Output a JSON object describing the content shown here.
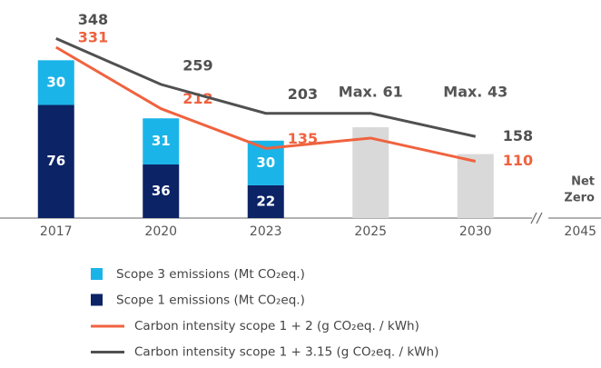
{
  "chart_data": {
    "type": "bar",
    "categories": [
      "2017",
      "2020",
      "2023",
      "2025",
      "2030",
      "2045"
    ],
    "series": [
      {
        "name": "Scope 3 emissions (Mt CO₂eq.)",
        "type": "bar",
        "color": "#1bb4e8",
        "values": [
          30,
          31,
          30,
          null,
          null,
          null
        ]
      },
      {
        "name": "Scope 1 emissions (Mt CO₂eq.)",
        "type": "bar",
        "color": "#0c2366",
        "values": [
          76,
          36,
          22,
          null,
          null,
          null
        ]
      },
      {
        "name": "Carbon intensity scope 1 + 2 (g CO₂eq. / kWh)",
        "type": "line",
        "axis": "y2",
        "color": "#f0623f",
        "values": [
          331,
          212,
          135,
          155,
          110,
          null
        ]
      },
      {
        "name": "Carbon intensity scope 1 + 3.15 (g CO₂eq. / kWh)",
        "type": "line",
        "axis": "y2",
        "color": "#505050",
        "values": [
          348,
          259,
          203,
          203,
          158,
          null
        ]
      },
      {
        "type": "bar",
        "color": "#d9d9d9",
        "values": [
          null,
          null,
          null,
          61,
          43,
          null
        ],
        "value_labels": [
          null,
          null,
          null,
          "Max. 61",
          "Max. 43",
          null
        ]
      }
    ],
    "annotation": [
      "Net",
      "Zero"
    ],
    "ylim": [
      0,
      130
    ],
    "y2lim": [
      0,
      375
    ]
  }
}
